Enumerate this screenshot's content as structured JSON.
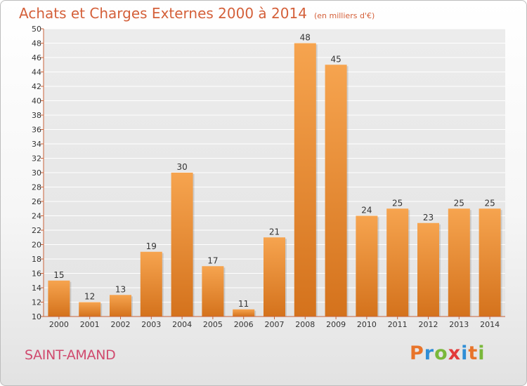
{
  "header": {
    "title": "Achats et Charges Externes 2000 à 2014",
    "unit": "(en milliers d'€)"
  },
  "footer": {
    "place": "SAINT-AMAND",
    "logo": {
      "text": "Proxiti",
      "letter_colors": [
        "#e8742a",
        "#2f8ed6",
        "#7ab83a",
        "#e23a3a",
        "#2f8ed6",
        "#e8742a",
        "#7ab83a"
      ]
    }
  },
  "colors": {
    "title": "#d4603a",
    "place": "#d04a6e",
    "bar_top": "#f6a44f",
    "bar_bottom": "#d4721c",
    "axis": "#c8623a",
    "grid": "#ffffff"
  },
  "chart_data": {
    "type": "bar",
    "title": "Achats et Charges Externes 2000 à 2014",
    "subtitle": "(en milliers d'€)",
    "categories": [
      "2000",
      "2001",
      "2002",
      "2003",
      "2004",
      "2005",
      "2006",
      "2007",
      "2008",
      "2009",
      "2010",
      "2011",
      "2012",
      "2013",
      "2014"
    ],
    "values": [
      15,
      12,
      13,
      19,
      30,
      17,
      11,
      21,
      48,
      45,
      24,
      25,
      23,
      25,
      25
    ],
    "ylim": [
      10,
      50
    ],
    "ytick_step": 2,
    "grid": true,
    "legend": "none",
    "xlabel": "",
    "ylabel": ""
  }
}
